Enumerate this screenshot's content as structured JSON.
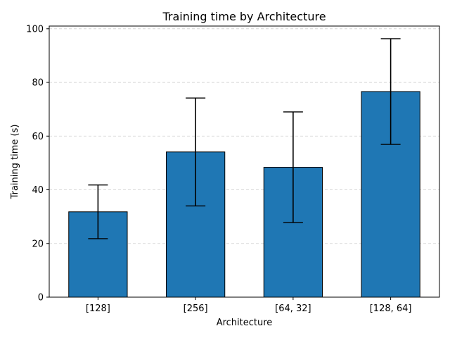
{
  "chart_data": {
    "type": "bar",
    "title": "Training time by Architecture",
    "xlabel": "Architecture",
    "ylabel": "Training time (s)",
    "categories": [
      "[128]",
      "[256]",
      "[64, 32]",
      "[128, 64]"
    ],
    "values": [
      31.8,
      54.1,
      48.4,
      76.6
    ],
    "error": [
      10.0,
      20.1,
      20.6,
      19.7
    ],
    "ylim": [
      0,
      101
    ],
    "yticks": [
      0,
      20,
      40,
      60,
      80,
      100
    ],
    "grid": "y-dashed",
    "bar_color": "#1f77b4",
    "edge_color": "#000000"
  }
}
